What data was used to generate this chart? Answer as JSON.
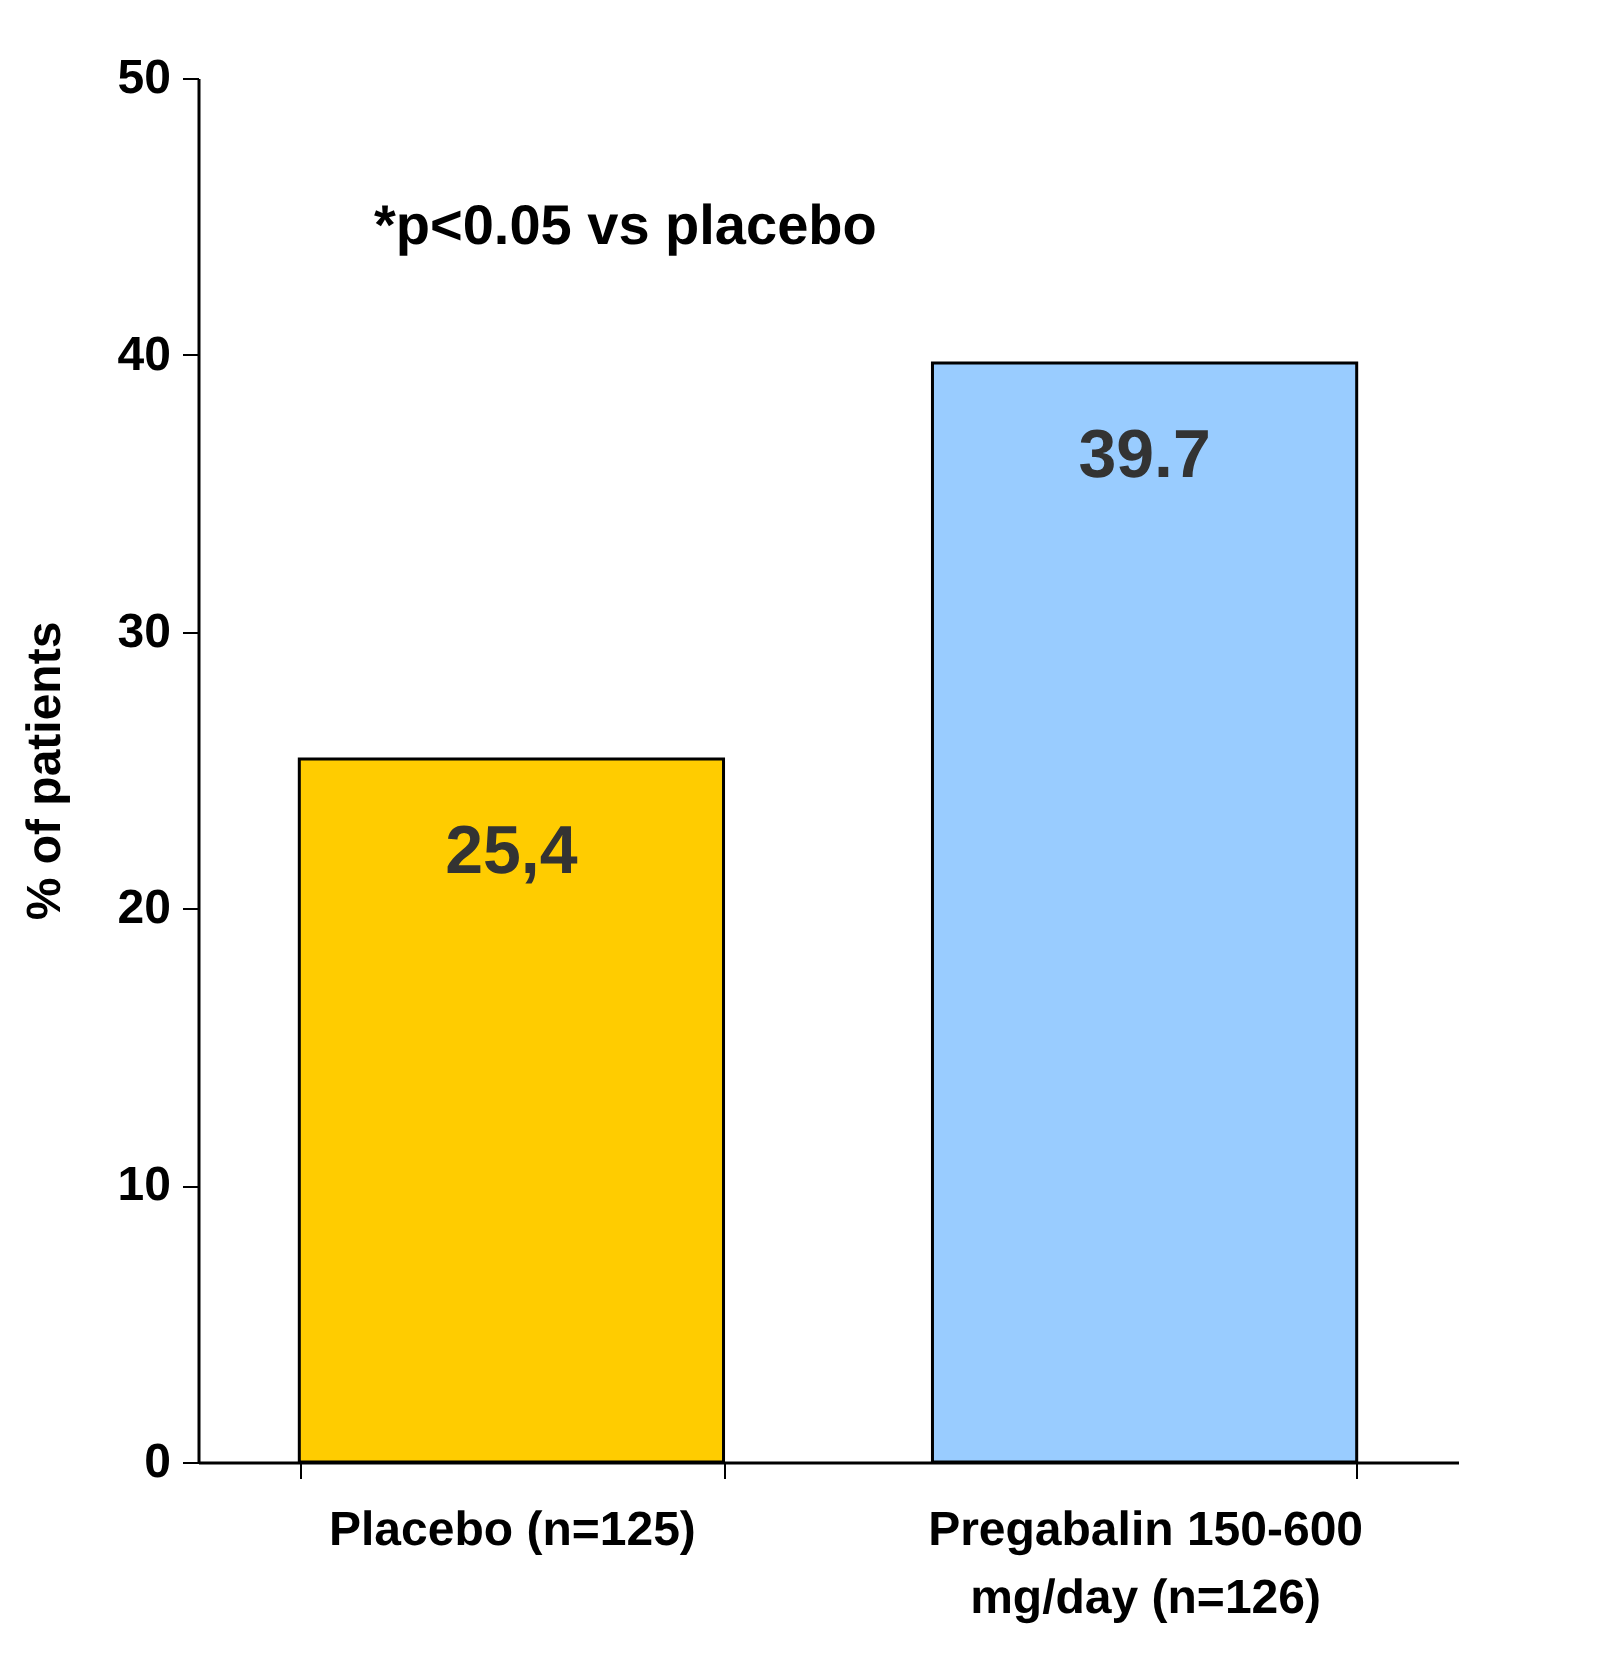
{
  "chart_data": {
    "type": "bar",
    "categories": [
      "Placebo (n=125)",
      "Pregabalin 150-600\nmg/day (n=126)"
    ],
    "values": [
      25.4,
      39.7
    ],
    "colors": [
      "#ffcc00",
      "#99ccff"
    ],
    "value_labels": [
      "25,4",
      "39.7"
    ],
    "ylabel": "% of patients",
    "ylim": [
      0,
      50
    ],
    "yticks": [
      0,
      10,
      20,
      30,
      40,
      50
    ],
    "annotations": [
      "*p<0.05 vs placebo"
    ],
    "grid": false
  }
}
